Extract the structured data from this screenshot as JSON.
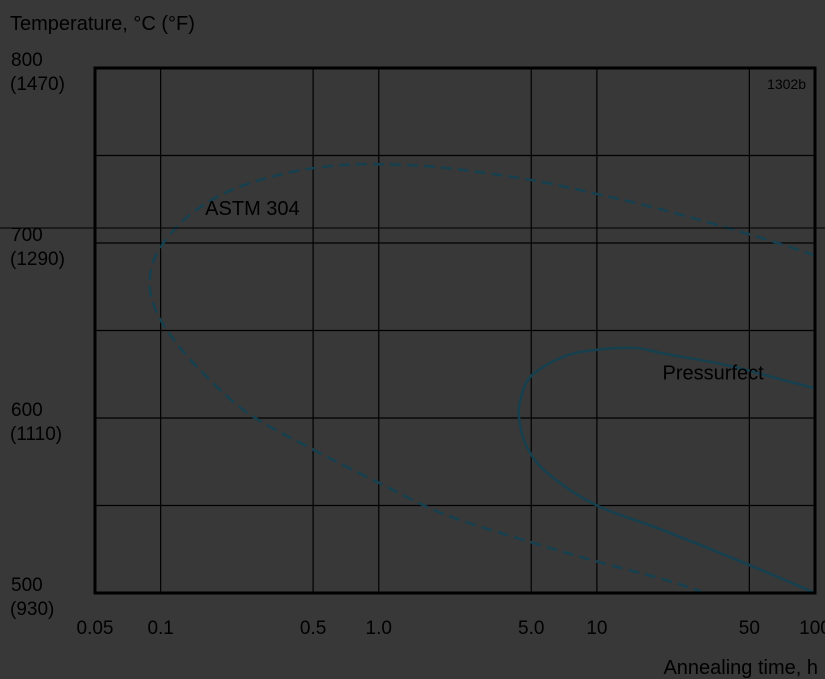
{
  "chart_data": {
    "type": "line",
    "title": "",
    "ylabel": "Temperature, °C (°F)",
    "xlabel": "Annealing time, h",
    "figure_tag": "1302b",
    "x_scale": "log",
    "xlim": [
      0.05,
      100
    ],
    "ylim": [
      500,
      800
    ],
    "x_ticks": [
      {
        "value": 0.05,
        "label": "0.05"
      },
      {
        "value": 0.1,
        "label": "0.1"
      },
      {
        "value": 0.5,
        "label": "0.5"
      },
      {
        "value": 1.0,
        "label": "1.0"
      },
      {
        "value": 5.0,
        "label": "5.0"
      },
      {
        "value": 10,
        "label": "10"
      },
      {
        "value": 50,
        "label": "50"
      },
      {
        "value": 100,
        "label": "100"
      }
    ],
    "y_ticks": [
      {
        "value": 800,
        "label": "800",
        "label2": "(1470)"
      },
      {
        "value": 700,
        "label": "700",
        "label2": "(1290)"
      },
      {
        "value": 600,
        "label": "600",
        "label2": "(1110)"
      },
      {
        "value": 500,
        "label": "500",
        "label2": "(930)"
      }
    ],
    "x_gridlines": [
      0.1,
      0.5,
      1.0,
      5.0,
      10,
      50
    ],
    "y_gridlines": [
      550,
      600,
      650,
      700,
      750
    ],
    "grid": true,
    "series": [
      {
        "name": "ASTM 304",
        "style": "dashed",
        "color": "#17404f",
        "label_at": {
          "x": 0.16,
          "y": 716
        },
        "points": [
          {
            "x": 100,
            "y": 693
          },
          {
            "x": 50,
            "y": 705
          },
          {
            "x": 20,
            "y": 719
          },
          {
            "x": 10,
            "y": 728
          },
          {
            "x": 5,
            "y": 736
          },
          {
            "x": 2,
            "y": 743
          },
          {
            "x": 1.0,
            "y": 745
          },
          {
            "x": 0.6,
            "y": 744
          },
          {
            "x": 0.35,
            "y": 739
          },
          {
            "x": 0.2,
            "y": 729
          },
          {
            "x": 0.13,
            "y": 714
          },
          {
            "x": 0.097,
            "y": 695
          },
          {
            "x": 0.089,
            "y": 678
          },
          {
            "x": 0.094,
            "y": 663
          },
          {
            "x": 0.11,
            "y": 648
          },
          {
            "x": 0.15,
            "y": 628
          },
          {
            "x": 0.25,
            "y": 603
          },
          {
            "x": 0.5,
            "y": 582
          },
          {
            "x": 1.0,
            "y": 563
          },
          {
            "x": 2.0,
            "y": 545
          },
          {
            "x": 5.0,
            "y": 529
          },
          {
            "x": 10,
            "y": 518
          },
          {
            "x": 20,
            "y": 508
          },
          {
            "x": 30,
            "y": 501
          }
        ]
      },
      {
        "name": "Pressurfect",
        "style": "solid",
        "color": "#17404f",
        "label_at": {
          "x": 20,
          "y": 622
        },
        "points": [
          {
            "x": 100,
            "y": 617
          },
          {
            "x": 70,
            "y": 622
          },
          {
            "x": 40,
            "y": 630
          },
          {
            "x": 20,
            "y": 637
          },
          {
            "x": 15,
            "y": 640
          },
          {
            "x": 10,
            "y": 639
          },
          {
            "x": 7,
            "y": 635
          },
          {
            "x": 5,
            "y": 624
          },
          {
            "x": 4.5,
            "y": 612
          },
          {
            "x": 4.4,
            "y": 600
          },
          {
            "x": 4.8,
            "y": 583
          },
          {
            "x": 6,
            "y": 568
          },
          {
            "x": 10,
            "y": 550
          },
          {
            "x": 20,
            "y": 536
          },
          {
            "x": 50,
            "y": 516
          },
          {
            "x": 100,
            "y": 500
          }
        ]
      }
    ]
  }
}
